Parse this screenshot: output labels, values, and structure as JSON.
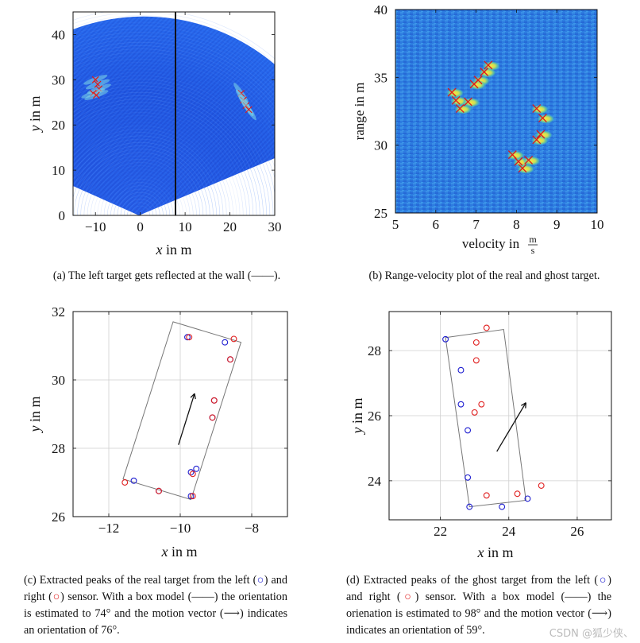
{
  "figures": {
    "a": {
      "xlabel_var": "x",
      "xlabel_rest": " in m",
      "ylabel_var": "y",
      "ylabel_rest": " in m",
      "xticks": [
        "−10",
        "0",
        "10",
        "20",
        "30"
      ],
      "yticks": [
        "0",
        "10",
        "20",
        "30",
        "40"
      ],
      "caption": "(a) The left target gets reflected at the wall (",
      "caption_end": ")."
    },
    "b": {
      "xlabel": "velocity in",
      "unit_num": "m",
      "unit_den": "s",
      "ylabel": "range in m",
      "xticks": [
        "5",
        "6",
        "7",
        "8",
        "9",
        "10"
      ],
      "yticks": [
        "25",
        "30",
        "35",
        "40"
      ],
      "caption": "(b) Range-velocity plot of the real and ghost target."
    },
    "c": {
      "xlabel_var": "x",
      "xlabel_rest": " in m",
      "ylabel_var": "y",
      "ylabel_rest": " in m",
      "xticks": [
        "−12",
        "−10",
        "−8"
      ],
      "yticks": [
        "26",
        "28",
        "30",
        "32"
      ],
      "caption_1": "(c) Extracted peaks of the real target from the left (",
      "caption_2": ") and right (",
      "caption_3": ") sensor. With a box model (",
      "caption_4": ") the orientation is estimated to 74° and the motion vector (",
      "caption_5": ") indicates an orientation of 76°."
    },
    "d": {
      "xlabel_var": "x",
      "xlabel_rest": " in m",
      "ylabel_var": "y",
      "ylabel_rest": " in m",
      "xticks": [
        "22",
        "24",
        "26"
      ],
      "yticks": [
        "24",
        "26",
        "28"
      ],
      "caption_1": "(d) Extracted peaks of the ghost target from the left (",
      "caption_2": ") and right (",
      "caption_3": ") sensor. With a box model (",
      "caption_4": ") the orienation is estimated to 98° and the motion vector (",
      "caption_5": ") indicates an orientation of 59°."
    }
  },
  "watermark": "CSDN @狐少侠、",
  "colors": {
    "left": "#1f1fd0",
    "right": "#e02020",
    "box": "#777777",
    "arrow": "#111111"
  },
  "chart_data": [
    {
      "type": "heatmap",
      "title": "",
      "xlabel": "x in m",
      "ylabel": "y in m",
      "xlim": [
        -15,
        30
      ],
      "ylim": [
        0,
        45
      ],
      "wall_x": 8,
      "peaks": [
        {
          "x": -10,
          "y": 30
        },
        {
          "x": -9.5,
          "y": 29
        },
        {
          "x": -9.2,
          "y": 28
        },
        {
          "x": -10.5,
          "y": 27
        },
        {
          "x": -9.8,
          "y": 26.6
        },
        {
          "x": 22.5,
          "y": 27
        },
        {
          "x": 23,
          "y": 25.5
        },
        {
          "x": 23.6,
          "y": 24.3
        },
        {
          "x": 24.2,
          "y": 23.4
        }
      ]
    },
    {
      "type": "heatmap",
      "title": "",
      "xlabel": "velocity in m/s",
      "ylabel": "range in m",
      "xlim": [
        5,
        10
      ],
      "ylim": [
        25,
        40
      ],
      "peaks": [
        {
          "x": 7.3,
          "y": 35.9
        },
        {
          "x": 7.2,
          "y": 35.4
        },
        {
          "x": 7.05,
          "y": 34.8
        },
        {
          "x": 6.95,
          "y": 34.5
        },
        {
          "x": 6.4,
          "y": 33.9
        },
        {
          "x": 6.5,
          "y": 33.3
        },
        {
          "x": 6.8,
          "y": 33.2
        },
        {
          "x": 6.6,
          "y": 32.7
        },
        {
          "x": 8.5,
          "y": 32.7
        },
        {
          "x": 8.65,
          "y": 32.0
        },
        {
          "x": 8.6,
          "y": 30.8
        },
        {
          "x": 8.5,
          "y": 30.4
        },
        {
          "x": 7.9,
          "y": 29.3
        },
        {
          "x": 8.05,
          "y": 28.8
        },
        {
          "x": 8.3,
          "y": 28.9
        },
        {
          "x": 8.15,
          "y": 28.3
        }
      ]
    },
    {
      "type": "scatter",
      "title": "",
      "xlabel": "x in m",
      "ylabel": "y in m",
      "xlim": [
        -13,
        -7
      ],
      "ylim": [
        26,
        32
      ],
      "series": [
        {
          "name": "left sensor",
          "points": [
            [
              -11.3,
              27.05
            ],
            [
              -10.6,
              26.75
            ],
            [
              -9.8,
              31.25
            ],
            [
              -9.7,
              27.3
            ],
            [
              -9.7,
              26.6
            ],
            [
              -9.55,
              27.4
            ],
            [
              -9.05,
              29.4
            ],
            [
              -9.1,
              28.9
            ],
            [
              -8.75,
              31.1
            ],
            [
              -8.6,
              30.6
            ]
          ]
        },
        {
          "name": "right sensor",
          "points": [
            [
              -11.55,
              27.0
            ],
            [
              -10.6,
              26.75
            ],
            [
              -9.75,
              31.25
            ],
            [
              -9.65,
              27.25
            ],
            [
              -9.65,
              26.6
            ],
            [
              -9.05,
              29.4
            ],
            [
              -9.1,
              28.9
            ],
            [
              -8.6,
              30.6
            ],
            [
              -8.5,
              31.2
            ]
          ]
        }
      ],
      "box": [
        [
          -10.2,
          31.7
        ],
        [
          -8.3,
          31.1
        ],
        [
          -9.7,
          26.5
        ],
        [
          -11.6,
          27.1
        ]
      ],
      "motion_vector": {
        "from": [
          -10.05,
          28.1
        ],
        "to": [
          -9.6,
          29.6
        ]
      },
      "box_orientation_deg": 74,
      "motion_orientation_deg": 76
    },
    {
      "type": "scatter",
      "title": "",
      "xlabel": "x in m",
      "ylabel": "y in m",
      "xlim": [
        20.5,
        27
      ],
      "ylim": [
        22.8,
        29.2
      ],
      "series": [
        {
          "name": "left sensor",
          "points": [
            [
              22.15,
              28.35
            ],
            [
              22.6,
              27.4
            ],
            [
              22.6,
              26.35
            ],
            [
              22.8,
              25.55
            ],
            [
              22.8,
              24.1
            ],
            [
              22.85,
              23.2
            ],
            [
              23.8,
              23.2
            ],
            [
              24.55,
              23.45
            ]
          ]
        },
        {
          "name": "right sensor",
          "points": [
            [
              23.35,
              28.7
            ],
            [
              23.05,
              28.25
            ],
            [
              23.05,
              27.7
            ],
            [
              23.2,
              26.35
            ],
            [
              23.0,
              26.1
            ],
            [
              23.35,
              23.55
            ],
            [
              24.25,
              23.6
            ],
            [
              24.95,
              23.85
            ]
          ]
        }
      ],
      "box": [
        [
          22.15,
          28.4
        ],
        [
          23.85,
          28.65
        ],
        [
          24.5,
          23.4
        ],
        [
          22.85,
          23.2
        ]
      ],
      "motion_vector": {
        "from": [
          23.65,
          24.9
        ],
        "to": [
          24.5,
          26.4
        ]
      },
      "box_orientation_deg": 98,
      "motion_orientation_deg": 59
    }
  ]
}
